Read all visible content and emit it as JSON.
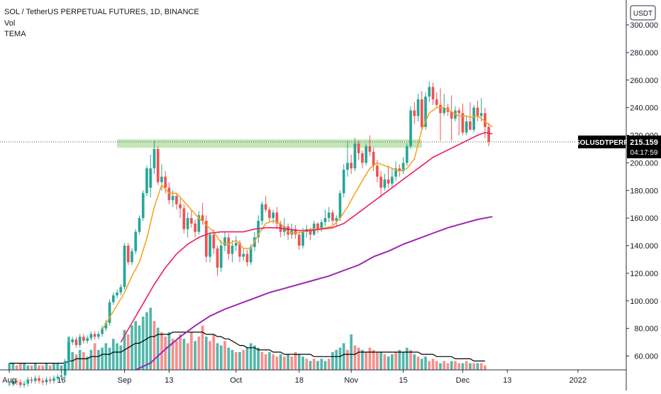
{
  "legend": {
    "title": "SOL / TetherUS PERPETUAL FUTURES, 1D, BINANCE",
    "vol": "Vol",
    "tema": "TEMA"
  },
  "currency_badge": "USDT",
  "price_tag": {
    "symbol": "SOLUSDTPERP",
    "price": "215.159",
    "countdown": "04:17:59"
  },
  "colors": {
    "up": "#26a69a",
    "down": "#ef5350",
    "vol_up": "#52b7ac",
    "vol_down": "#f58f8b",
    "tema_fast": "#f5a623",
    "tema_mid": "#e91e63",
    "tema_slow": "#9c27b0",
    "vol_ma": "#000000",
    "zone": "#8fd17a"
  },
  "chart_data": {
    "type": "candlestick",
    "title": "SOL / TetherUS PERPETUAL FUTURES, 1D, BINANCE",
    "ylim": [
      50,
      318
    ],
    "y_ticks": [
      "60.000",
      "80.000",
      "100.000",
      "120.000",
      "140.000",
      "160.000",
      "180.000",
      "200.000",
      "220.000",
      "240.000",
      "260.000",
      "280.000",
      "300.000"
    ],
    "y_tick_values": [
      60,
      80,
      100,
      120,
      140,
      160,
      180,
      200,
      220,
      240,
      260,
      280,
      300
    ],
    "x_ticks": [
      "Aug",
      "16",
      "Sep",
      "13",
      "Oct",
      "18",
      "Nov",
      "15",
      "Dec",
      "13",
      "2022"
    ],
    "x_tick_days": [
      0,
      14,
      31,
      43,
      61,
      78,
      92,
      106,
      122,
      134,
      153
    ],
    "x_axis_days_range": [
      -2.5,
      166
    ],
    "first_day_label": "Aug 1",
    "last_price": 215.159,
    "support_zone": {
      "low": 211,
      "high": 217,
      "start_day": 29,
      "end_day": 111
    },
    "closes": [
      40,
      42,
      41,
      39,
      40,
      43,
      42,
      44,
      42,
      41,
      43,
      42,
      44,
      45,
      46,
      56,
      70,
      72,
      68,
      74,
      71,
      73,
      76,
      74,
      76,
      80,
      84,
      99,
      104,
      106,
      110,
      140,
      128,
      136,
      150,
      160,
      178,
      196,
      210,
      186,
      190,
      182,
      173,
      176,
      170,
      167,
      152,
      160,
      156,
      150,
      162,
      158,
      132,
      148,
      138,
      124,
      140,
      146,
      134,
      140,
      142,
      132,
      134,
      128,
      139,
      146,
      158,
      170,
      166,
      160,
      164,
      156,
      150,
      154,
      148,
      152,
      148,
      140,
      150,
      152,
      148,
      156,
      152,
      157,
      160,
      164,
      158,
      160,
      178,
      195,
      200,
      196,
      214,
      207,
      200,
      212,
      208,
      198,
      190,
      182,
      188,
      185,
      190,
      196,
      194,
      200,
      212,
      238,
      234,
      246,
      226,
      248,
      255,
      246,
      242,
      236,
      240,
      237,
      232,
      238,
      236,
      222,
      230,
      224,
      240,
      234,
      236,
      226,
      215.159
    ],
    "candles_window_start": 38,
    "visible_candles": [
      {
        "o": 182,
        "h": 206,
        "l": 175,
        "c": 196
      },
      {
        "o": 196,
        "h": 216,
        "l": 192,
        "c": 210
      },
      {
        "o": 210,
        "h": 212,
        "l": 184,
        "c": 186
      },
      {
        "o": 186,
        "h": 199,
        "l": 180,
        "c": 190
      },
      {
        "o": 190,
        "h": 194,
        "l": 178,
        "c": 182
      },
      {
        "o": 182,
        "h": 186,
        "l": 170,
        "c": 173
      },
      {
        "o": 173,
        "h": 180,
        "l": 168,
        "c": 176
      },
      {
        "o": 176,
        "h": 178,
        "l": 166,
        "c": 170
      },
      {
        "o": 170,
        "h": 174,
        "l": 160,
        "c": 167
      },
      {
        "o": 167,
        "h": 170,
        "l": 149,
        "c": 152
      },
      {
        "o": 152,
        "h": 164,
        "l": 146,
        "c": 160
      },
      {
        "o": 160,
        "h": 166,
        "l": 153,
        "c": 156
      },
      {
        "o": 156,
        "h": 159,
        "l": 146,
        "c": 150
      },
      {
        "o": 150,
        "h": 165,
        "l": 148,
        "c": 162
      },
      {
        "o": 162,
        "h": 171,
        "l": 155,
        "c": 158
      },
      {
        "o": 158,
        "h": 162,
        "l": 128,
        "c": 132
      },
      {
        "o": 132,
        "h": 150,
        "l": 128,
        "c": 148
      },
      {
        "o": 148,
        "h": 152,
        "l": 134,
        "c": 138
      },
      {
        "o": 138,
        "h": 140,
        "l": 118,
        "c": 124
      },
      {
        "o": 124,
        "h": 144,
        "l": 121,
        "c": 140
      },
      {
        "o": 140,
        "h": 150,
        "l": 136,
        "c": 146
      },
      {
        "o": 146,
        "h": 149,
        "l": 130,
        "c": 134
      },
      {
        "o": 134,
        "h": 144,
        "l": 128,
        "c": 140
      },
      {
        "o": 140,
        "h": 147,
        "l": 136,
        "c": 142
      },
      {
        "o": 142,
        "h": 144,
        "l": 128,
        "c": 132
      },
      {
        "o": 132,
        "h": 138,
        "l": 129,
        "c": 134
      },
      {
        "o": 134,
        "h": 137,
        "l": 125,
        "c": 128
      },
      {
        "o": 128,
        "h": 141,
        "l": 126,
        "c": 139
      },
      {
        "o": 139,
        "h": 150,
        "l": 136,
        "c": 146
      },
      {
        "o": 146,
        "h": 162,
        "l": 142,
        "c": 158
      },
      {
        "o": 158,
        "h": 172,
        "l": 155,
        "c": 170
      },
      {
        "o": 170,
        "h": 176,
        "l": 164,
        "c": 166
      },
      {
        "o": 166,
        "h": 168,
        "l": 157,
        "c": 160
      },
      {
        "o": 160,
        "h": 166,
        "l": 156,
        "c": 164
      },
      {
        "o": 164,
        "h": 168,
        "l": 152,
        "c": 156
      },
      {
        "o": 156,
        "h": 158,
        "l": 146,
        "c": 150
      },
      {
        "o": 150,
        "h": 160,
        "l": 147,
        "c": 154
      },
      {
        "o": 154,
        "h": 156,
        "l": 144,
        "c": 148
      },
      {
        "o": 148,
        "h": 156,
        "l": 145,
        "c": 152
      },
      {
        "o": 152,
        "h": 155,
        "l": 145,
        "c": 148
      },
      {
        "o": 148,
        "h": 150,
        "l": 137,
        "c": 140
      },
      {
        "o": 140,
        "h": 153,
        "l": 138,
        "c": 150
      },
      {
        "o": 150,
        "h": 155,
        "l": 146,
        "c": 152
      },
      {
        "o": 152,
        "h": 153,
        "l": 144,
        "c": 148
      },
      {
        "o": 148,
        "h": 158,
        "l": 147,
        "c": 156
      },
      {
        "o": 156,
        "h": 157,
        "l": 149,
        "c": 152
      },
      {
        "o": 152,
        "h": 159,
        "l": 150,
        "c": 157
      },
      {
        "o": 157,
        "h": 166,
        "l": 154,
        "c": 160
      },
      {
        "o": 160,
        "h": 168,
        "l": 157,
        "c": 164
      },
      {
        "o": 164,
        "h": 166,
        "l": 155,
        "c": 158
      },
      {
        "o": 158,
        "h": 162,
        "l": 154,
        "c": 160
      },
      {
        "o": 160,
        "h": 180,
        "l": 158,
        "c": 178
      },
      {
        "o": 178,
        "h": 199,
        "l": 175,
        "c": 195
      },
      {
        "o": 195,
        "h": 216,
        "l": 190,
        "c": 200
      },
      {
        "o": 200,
        "h": 206,
        "l": 192,
        "c": 196
      },
      {
        "o": 196,
        "h": 218,
        "l": 194,
        "c": 214
      },
      {
        "o": 214,
        "h": 216,
        "l": 202,
        "c": 207
      },
      {
        "o": 207,
        "h": 209,
        "l": 196,
        "c": 200
      },
      {
        "o": 200,
        "h": 214,
        "l": 198,
        "c": 212
      },
      {
        "o": 212,
        "h": 220,
        "l": 205,
        "c": 208
      },
      {
        "o": 208,
        "h": 211,
        "l": 194,
        "c": 198
      },
      {
        "o": 198,
        "h": 202,
        "l": 186,
        "c": 190
      },
      {
        "o": 190,
        "h": 194,
        "l": 175,
        "c": 182
      },
      {
        "o": 182,
        "h": 192,
        "l": 180,
        "c": 188
      },
      {
        "o": 188,
        "h": 198,
        "l": 182,
        "c": 185
      },
      {
        "o": 185,
        "h": 196,
        "l": 182,
        "c": 190
      },
      {
        "o": 190,
        "h": 201,
        "l": 187,
        "c": 196
      },
      {
        "o": 196,
        "h": 199,
        "l": 190,
        "c": 194
      },
      {
        "o": 194,
        "h": 204,
        "l": 192,
        "c": 200
      },
      {
        "o": 200,
        "h": 214,
        "l": 198,
        "c": 212
      },
      {
        "o": 212,
        "h": 241,
        "l": 210,
        "c": 238
      },
      {
        "o": 238,
        "h": 244,
        "l": 228,
        "c": 234
      },
      {
        "o": 234,
        "h": 250,
        "l": 230,
        "c": 246
      },
      {
        "o": 246,
        "h": 252,
        "l": 224,
        "c": 226
      },
      {
        "o": 226,
        "h": 251,
        "l": 224,
        "c": 248
      },
      {
        "o": 248,
        "h": 259,
        "l": 244,
        "c": 255
      },
      {
        "o": 255,
        "h": 258,
        "l": 242,
        "c": 246
      },
      {
        "o": 246,
        "h": 251,
        "l": 240,
        "c": 242
      },
      {
        "o": 242,
        "h": 254,
        "l": 216,
        "c": 236
      },
      {
        "o": 236,
        "h": 250,
        "l": 234,
        "c": 240
      },
      {
        "o": 240,
        "h": 243,
        "l": 234,
        "c": 237
      },
      {
        "o": 237,
        "h": 249,
        "l": 216,
        "c": 232
      },
      {
        "o": 232,
        "h": 241,
        "l": 230,
        "c": 238
      },
      {
        "o": 238,
        "h": 240,
        "l": 220,
        "c": 236
      },
      {
        "o": 236,
        "h": 243,
        "l": 220,
        "c": 222
      },
      {
        "o": 222,
        "h": 234,
        "l": 220,
        "c": 230
      },
      {
        "o": 230,
        "h": 244,
        "l": 224,
        "c": 224
      },
      {
        "o": 224,
        "h": 242,
        "l": 222,
        "c": 240
      },
      {
        "o": 240,
        "h": 245,
        "l": 230,
        "c": 234
      },
      {
        "o": 234,
        "h": 247,
        "l": 230,
        "c": 236
      },
      {
        "o": 236,
        "h": 240,
        "l": 218,
        "c": 226
      },
      {
        "o": 226,
        "h": 229,
        "l": 212,
        "c": 215.159
      }
    ],
    "tema_series": [
      {
        "name": "TEMA",
        "key": "fast",
        "days": [
          25,
          27,
          29,
          31,
          33,
          35,
          37,
          39,
          41,
          43,
          45,
          47,
          49,
          51,
          53,
          55,
          57,
          59,
          61,
          63,
          65,
          67,
          69,
          71,
          73,
          75,
          77,
          79,
          81,
          83,
          85,
          87,
          89,
          91,
          93,
          95,
          97,
          99,
          101,
          103,
          105,
          107,
          109,
          111,
          113,
          115,
          117,
          119,
          121,
          123,
          124,
          126,
          128,
          130
        ],
        "values": [
          79,
          88,
          97,
          106,
          118,
          128,
          145,
          168,
          184,
          178,
          178,
          172,
          166,
          160,
          155,
          150,
          142,
          141,
          144,
          138,
          138,
          148,
          156,
          158,
          156,
          150,
          149,
          150,
          152,
          152,
          153,
          154,
          160,
          168,
          178,
          187,
          196,
          200,
          198,
          196,
          194,
          196,
          203,
          224,
          236,
          240,
          240,
          237,
          234,
          234,
          233,
          234,
          230,
          226
        ]
      },
      {
        "name": "TEMA",
        "key": "mid",
        "days": [
          30,
          33,
          36,
          39,
          42,
          45,
          48,
          51,
          54,
          57,
          60,
          63,
          66,
          69,
          72,
          75,
          78,
          81,
          84,
          87,
          90,
          93,
          96,
          99,
          102,
          105,
          108,
          111,
          114,
          117,
          120,
          123,
          126,
          128,
          130
        ],
        "values": [
          70,
          84,
          98,
          112,
          124,
          134,
          141,
          146,
          149,
          150,
          150,
          150,
          152,
          153,
          153,
          152,
          151,
          151,
          152,
          153,
          156,
          162,
          168,
          174,
          180,
          186,
          192,
          198,
          204,
          208,
          212,
          216,
          220,
          222,
          221
        ]
      },
      {
        "name": "TEMA",
        "key": "slow",
        "days": [
          34,
          38,
          42,
          46,
          50,
          54,
          58,
          62,
          66,
          70,
          74,
          78,
          82,
          86,
          90,
          94,
          98,
          102,
          106,
          110,
          114,
          118,
          122,
          126,
          130
        ],
        "values": [
          50,
          55,
          65,
          74,
          82,
          89,
          94,
          98,
          102,
          106,
          109,
          112,
          115,
          118,
          122,
          126,
          132,
          136,
          141,
          145,
          149,
          153,
          156,
          159,
          161
        ]
      }
    ],
    "volume": {
      "values": [
        3,
        3,
        2,
        3,
        3,
        2,
        2,
        3,
        2,
        2,
        3,
        2,
        3,
        3,
        2,
        4,
        15,
        8,
        7,
        9,
        8,
        6,
        9,
        12,
        9,
        10,
        12,
        10,
        14,
        12,
        11,
        18,
        16,
        20,
        22,
        20,
        24,
        26,
        28,
        22,
        19,
        17,
        15,
        17,
        14,
        13,
        16,
        14,
        12,
        17,
        13,
        15,
        20,
        15,
        13,
        16,
        12,
        11,
        13,
        10,
        9,
        8,
        8,
        9,
        10,
        12,
        11,
        10,
        8,
        7,
        8,
        7,
        6,
        7,
        6,
        7,
        6,
        8,
        7,
        6,
        5,
        4,
        5,
        4,
        5,
        4,
        5,
        8,
        9,
        10,
        12,
        9,
        16,
        11,
        10,
        9,
        8,
        10,
        9,
        8,
        8,
        7,
        6,
        7,
        8,
        9,
        8,
        10,
        9,
        7,
        6,
        5,
        6,
        4,
        5,
        4,
        3,
        4,
        3,
        4,
        4,
        3,
        3,
        4,
        3,
        3,
        3,
        3,
        2
      ],
      "ma": [
        3,
        3,
        3,
        3,
        3,
        3,
        3,
        3,
        3,
        3,
        3,
        3,
        3,
        3,
        3,
        3,
        4,
        4,
        5,
        5,
        5,
        5,
        6,
        6,
        6,
        7,
        7,
        7,
        8,
        8,
        8,
        9,
        10,
        11,
        12,
        12,
        13,
        14,
        15,
        15,
        16,
        16,
        16,
        16,
        17,
        17,
        17,
        17,
        17,
        17,
        17,
        17,
        17,
        16,
        16,
        16,
        15,
        15,
        14,
        14,
        13,
        12,
        11,
        11,
        10,
        10,
        10,
        9,
        9,
        9,
        9,
        8,
        8,
        8,
        7,
        7,
        7,
        7,
        7,
        7,
        7,
        7,
        6,
        6,
        6,
        6,
        6,
        6,
        6,
        6,
        7,
        7,
        7,
        7,
        8,
        8,
        8,
        8,
        8,
        8,
        8,
        8,
        8,
        8,
        8,
        8,
        8,
        8,
        8,
        8,
        8,
        7,
        7,
        7,
        7,
        6,
        6,
        6,
        6,
        6,
        5,
        5,
        5,
        5,
        5,
        4,
        4,
        4,
        4
      ],
      "max": 32
    }
  }
}
